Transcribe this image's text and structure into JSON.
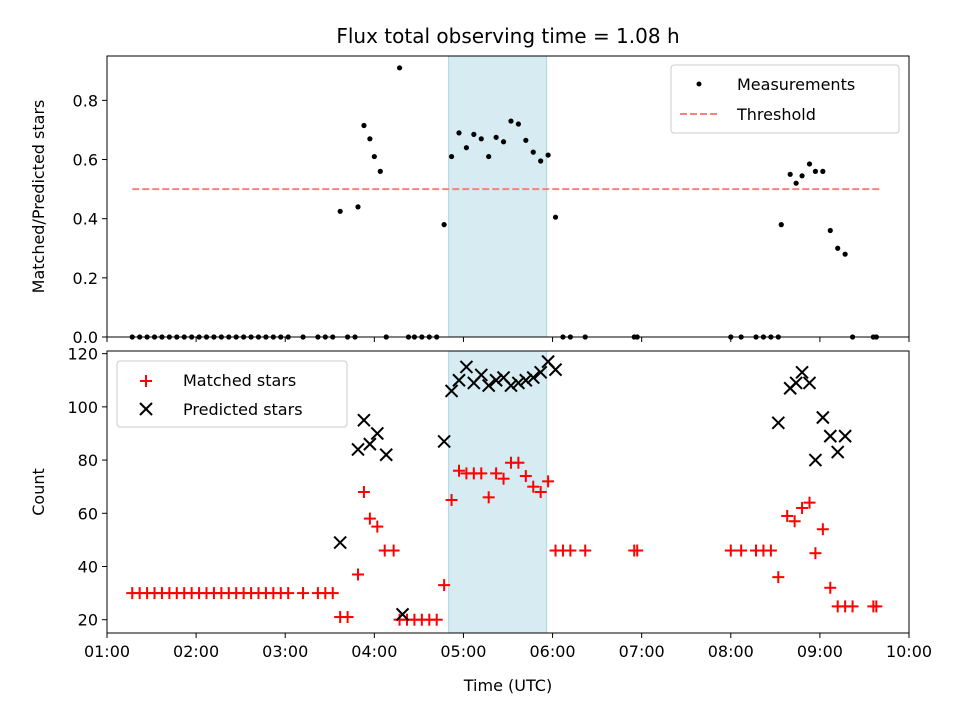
{
  "chart_data": [
    {
      "type": "scatter",
      "panel": "top",
      "title": "Flux total observing time = 1.08 h",
      "xlabel": "",
      "ylabel": "Matched/Predicted stars",
      "xlim": [
        "01:00",
        "10:00"
      ],
      "ylim": [
        0,
        0.95
      ],
      "yticks": [
        0.0,
        0.2,
        0.4,
        0.6,
        0.8
      ],
      "legend_position": "upper right",
      "highlight_span": {
        "start": "04:50",
        "end": "05:56",
        "color": "#add8e6"
      },
      "series": [
        {
          "name": "Measurements",
          "kind": "scatter",
          "marker": "dot",
          "color": "#000000",
          "points": [
            [
              "01:17",
              0
            ],
            [
              "01:22",
              0
            ],
            [
              "01:27",
              0
            ],
            [
              "01:32",
              0
            ],
            [
              "01:37",
              0
            ],
            [
              "01:42",
              0
            ],
            [
              "01:47",
              0
            ],
            [
              "01:52",
              0
            ],
            [
              "01:57",
              0
            ],
            [
              "02:02",
              0
            ],
            [
              "02:07",
              0
            ],
            [
              "02:12",
              0
            ],
            [
              "02:17",
              0
            ],
            [
              "02:22",
              0
            ],
            [
              "02:27",
              0
            ],
            [
              "02:32",
              0
            ],
            [
              "02:37",
              0
            ],
            [
              "02:42",
              0
            ],
            [
              "02:47",
              0
            ],
            [
              "02:52",
              0
            ],
            [
              "02:57",
              0
            ],
            [
              "03:02",
              0
            ],
            [
              "03:12",
              0
            ],
            [
              "03:22",
              0
            ],
            [
              "03:27",
              0
            ],
            [
              "03:32",
              0
            ],
            [
              "03:37",
              0.425
            ],
            [
              "03:42",
              0
            ],
            [
              "03:47",
              0
            ],
            [
              "03:49",
              0.44
            ],
            [
              "03:53",
              0.715
            ],
            [
              "03:57",
              0.67
            ],
            [
              "04:00",
              0.61
            ],
            [
              "04:04",
              0.56
            ],
            [
              "04:08",
              0
            ],
            [
              "04:17",
              0.91
            ],
            [
              "04:23",
              0
            ],
            [
              "04:27",
              0
            ],
            [
              "04:32",
              0
            ],
            [
              "04:37",
              0
            ],
            [
              "04:42",
              0
            ],
            [
              "04:47",
              0.38
            ],
            [
              "04:52",
              0.61
            ],
            [
              "04:57",
              0.69
            ],
            [
              "05:02",
              0.64
            ],
            [
              "05:07",
              0.685
            ],
            [
              "05:12",
              0.67
            ],
            [
              "05:17",
              0.61
            ],
            [
              "05:22",
              0.675
            ],
            [
              "05:27",
              0.66
            ],
            [
              "05:32",
              0.73
            ],
            [
              "05:37",
              0.72
            ],
            [
              "05:42",
              0.665
            ],
            [
              "05:47",
              0.625
            ],
            [
              "05:52",
              0.595
            ],
            [
              "05:57",
              0.615
            ],
            [
              "06:02",
              0.405
            ],
            [
              "06:07",
              0
            ],
            [
              "06:12",
              0
            ],
            [
              "06:22",
              0
            ],
            [
              "06:55",
              0
            ],
            [
              "06:57",
              0
            ],
            [
              "08:00",
              0
            ],
            [
              "08:07",
              0
            ],
            [
              "08:17",
              0
            ],
            [
              "08:22",
              0
            ],
            [
              "08:27",
              0
            ],
            [
              "08:32",
              0
            ],
            [
              "08:34",
              0.38
            ],
            [
              "08:40",
              0.55
            ],
            [
              "08:44",
              0.52
            ],
            [
              "08:48",
              0.545
            ],
            [
              "08:53",
              0.585
            ],
            [
              "08:57",
              0.56
            ],
            [
              "09:02",
              0.56
            ],
            [
              "09:07",
              0.36
            ],
            [
              "09:12",
              0.3
            ],
            [
              "09:17",
              0.28
            ],
            [
              "09:22",
              0
            ],
            [
              "09:36",
              0
            ],
            [
              "09:38",
              0
            ]
          ]
        },
        {
          "name": "Threshold",
          "kind": "dashed-line",
          "color": "#ff7f7f",
          "points": [
            [
              "01:17",
              0.5
            ],
            [
              "09:41",
              0.5
            ]
          ]
        }
      ]
    },
    {
      "type": "scatter",
      "panel": "bottom",
      "title": "",
      "xlabel": "Time (UTC)",
      "ylabel": "Count",
      "xlim": [
        "01:00",
        "10:00"
      ],
      "ylim": [
        15,
        121
      ],
      "yticks": [
        20,
        40,
        60,
        80,
        100,
        120
      ],
      "xticks": [
        "01:00",
        "02:00",
        "03:00",
        "04:00",
        "05:00",
        "06:00",
        "07:00",
        "08:00",
        "09:00",
        "10:00"
      ],
      "legend_position": "upper left",
      "highlight_span": {
        "start": "04:50",
        "end": "05:56",
        "color": "#add8e6"
      },
      "series": [
        {
          "name": "Matched stars",
          "kind": "scatter",
          "marker": "plus",
          "color": "#ff0000",
          "points": [
            [
              "01:17",
              30
            ],
            [
              "01:22",
              30
            ],
            [
              "01:27",
              30
            ],
            [
              "01:32",
              30
            ],
            [
              "01:37",
              30
            ],
            [
              "01:42",
              30
            ],
            [
              "01:47",
              30
            ],
            [
              "01:52",
              30
            ],
            [
              "01:57",
              30
            ],
            [
              "02:02",
              30
            ],
            [
              "02:07",
              30
            ],
            [
              "02:12",
              30
            ],
            [
              "02:17",
              30
            ],
            [
              "02:22",
              30
            ],
            [
              "02:27",
              30
            ],
            [
              "02:32",
              30
            ],
            [
              "02:37",
              30
            ],
            [
              "02:42",
              30
            ],
            [
              "02:47",
              30
            ],
            [
              "02:52",
              30
            ],
            [
              "02:57",
              30
            ],
            [
              "03:02",
              30
            ],
            [
              "03:12",
              30
            ],
            [
              "03:22",
              30
            ],
            [
              "03:27",
              30
            ],
            [
              "03:32",
              30
            ],
            [
              "03:37",
              21
            ],
            [
              "03:42",
              21
            ],
            [
              "03:49",
              37
            ],
            [
              "03:53",
              68
            ],
            [
              "03:57",
              58
            ],
            [
              "04:02",
              55
            ],
            [
              "04:07",
              46
            ],
            [
              "04:13",
              46
            ],
            [
              "04:17",
              20
            ],
            [
              "04:22",
              20
            ],
            [
              "04:27",
              20
            ],
            [
              "04:32",
              20
            ],
            [
              "04:37",
              20
            ],
            [
              "04:42",
              20
            ],
            [
              "04:47",
              33
            ],
            [
              "04:52",
              65
            ],
            [
              "04:57",
              76
            ],
            [
              "05:02",
              75
            ],
            [
              "05:07",
              75
            ],
            [
              "05:12",
              75
            ],
            [
              "05:17",
              66
            ],
            [
              "05:22",
              75
            ],
            [
              "05:27",
              73
            ],
            [
              "05:32",
              79
            ],
            [
              "05:37",
              79
            ],
            [
              "05:42",
              74
            ],
            [
              "05:47",
              70
            ],
            [
              "05:52",
              68
            ],
            [
              "05:57",
              72
            ],
            [
              "06:02",
              46
            ],
            [
              "06:07",
              46
            ],
            [
              "06:12",
              46
            ],
            [
              "06:22",
              46
            ],
            [
              "06:55",
              46
            ],
            [
              "06:57",
              46
            ],
            [
              "08:00",
              46
            ],
            [
              "08:07",
              46
            ],
            [
              "08:17",
              46
            ],
            [
              "08:22",
              46
            ],
            [
              "08:27",
              46
            ],
            [
              "08:32",
              36
            ],
            [
              "08:38",
              59
            ],
            [
              "08:43",
              57
            ],
            [
              "08:48",
              62
            ],
            [
              "08:53",
              64
            ],
            [
              "08:57",
              45
            ],
            [
              "09:02",
              54
            ],
            [
              "09:07",
              32
            ],
            [
              "09:12",
              25
            ],
            [
              "09:17",
              25
            ],
            [
              "09:22",
              25
            ],
            [
              "09:36",
              25
            ],
            [
              "09:38",
              25
            ]
          ]
        },
        {
          "name": "Predicted stars",
          "kind": "scatter",
          "marker": "x",
          "color": "#000000",
          "points": [
            [
              "03:37",
              49
            ],
            [
              "03:49",
              84
            ],
            [
              "03:53",
              95
            ],
            [
              "03:57",
              86
            ],
            [
              "04:02",
              90
            ],
            [
              "04:08",
              82
            ],
            [
              "04:19",
              22
            ],
            [
              "04:47",
              87
            ],
            [
              "04:52",
              106
            ],
            [
              "04:57",
              110
            ],
            [
              "05:02",
              115
            ],
            [
              "05:07",
              109
            ],
            [
              "05:12",
              112
            ],
            [
              "05:17",
              108
            ],
            [
              "05:22",
              110
            ],
            [
              "05:27",
              111
            ],
            [
              "05:32",
              108
            ],
            [
              "05:37",
              109
            ],
            [
              "05:42",
              110
            ],
            [
              "05:47",
              111
            ],
            [
              "05:52",
              113
            ],
            [
              "05:57",
              117
            ],
            [
              "06:02",
              114
            ],
            [
              "08:32",
              94
            ],
            [
              "08:40",
              107
            ],
            [
              "08:44",
              109
            ],
            [
              "08:48",
              113
            ],
            [
              "08:53",
              109
            ],
            [
              "08:57",
              80
            ],
            [
              "09:02",
              96
            ],
            [
              "09:07",
              89
            ],
            [
              "09:12",
              83
            ],
            [
              "09:17",
              89
            ]
          ]
        }
      ]
    }
  ]
}
